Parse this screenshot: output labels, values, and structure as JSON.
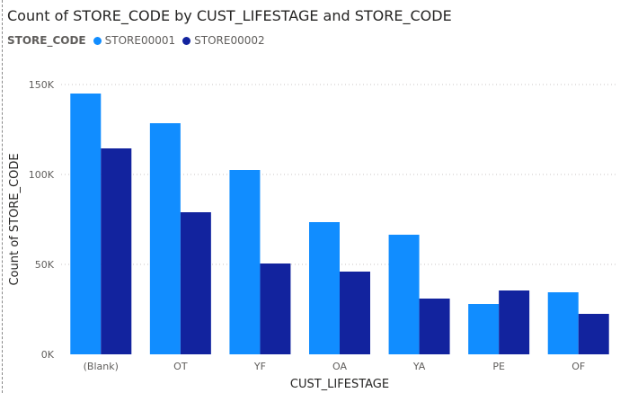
{
  "chart_data": {
    "type": "bar",
    "title": "Count of STORE_CODE by CUST_LIFESTAGE and STORE_CODE",
    "legend_title": "STORE_CODE",
    "legend_position": "top-left",
    "categories": [
      "(Blank)",
      "OT",
      "YF",
      "OA",
      "YA",
      "PE",
      "OF"
    ],
    "series": [
      {
        "name": "STORE00001",
        "color": "#118DFF",
        "values": [
          145000,
          128500,
          102500,
          73500,
          66500,
          28000,
          34500
        ]
      },
      {
        "name": "STORE00002",
        "color": "#12239E",
        "values": [
          114500,
          79000,
          50500,
          46000,
          31000,
          35500,
          22500
        ]
      }
    ],
    "xlabel": "CUST_LIFESTAGE",
    "ylabel": "Count of STORE_CODE",
    "ylim": [
      0,
      150000
    ],
    "yticks": [
      {
        "value": 0,
        "label": "0K"
      },
      {
        "value": 50000,
        "label": "50K"
      },
      {
        "value": 100000,
        "label": "100K"
      },
      {
        "value": 150000,
        "label": "150K"
      }
    ],
    "grid": true
  }
}
